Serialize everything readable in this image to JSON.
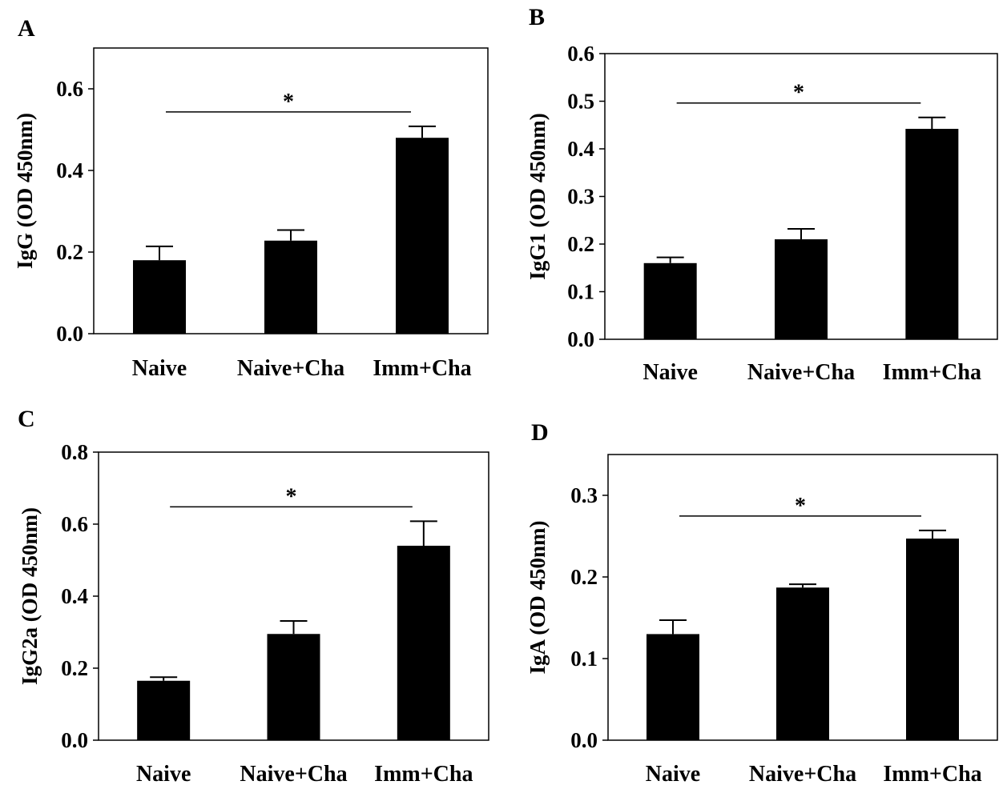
{
  "chart_data": [
    {
      "panel_label": "A",
      "type": "bar",
      "categories": [
        "Naive",
        "Naive+Cha",
        "Imm+Cha"
      ],
      "values": [
        0.18,
        0.228,
        0.48
      ],
      "errors": [
        0.034,
        0.026,
        0.028
      ],
      "ylabel": "IgG (OD 450nm)",
      "ylim": [
        0,
        0.7
      ],
      "yticks": [
        0.0,
        0.2,
        0.4,
        0.6
      ],
      "ytick_labels": [
        "0.0",
        "0.2",
        "0.4",
        "0.6"
      ],
      "significance": {
        "from": "Naive",
        "to": "Imm+Cha",
        "label": "*"
      },
      "bar_color": "#000000"
    },
    {
      "panel_label": "B",
      "type": "bar",
      "categories": [
        "Naive",
        "Naive+Cha",
        "Imm+Cha"
      ],
      "values": [
        0.16,
        0.21,
        0.442
      ],
      "errors": [
        0.012,
        0.022,
        0.024
      ],
      "ylabel": "IgG1 (OD 450nm)",
      "ylim": [
        0,
        0.6
      ],
      "yticks": [
        0.0,
        0.1,
        0.2,
        0.3,
        0.4,
        0.5,
        0.6
      ],
      "ytick_labels": [
        "0.0",
        "0.1",
        "0.2",
        "0.3",
        "0.4",
        "0.5",
        "0.6"
      ],
      "significance": {
        "from": "Naive",
        "to": "Imm+Cha",
        "label": "*"
      },
      "bar_color": "#000000"
    },
    {
      "panel_label": "C",
      "type": "bar",
      "categories": [
        "Naive",
        "Naive+Cha",
        "Imm+Cha"
      ],
      "values": [
        0.165,
        0.295,
        0.54
      ],
      "errors": [
        0.01,
        0.036,
        0.068
      ],
      "ylabel": "IgG2a (OD 450nm)",
      "ylim": [
        0,
        0.8
      ],
      "yticks": [
        0.0,
        0.2,
        0.4,
        0.6,
        0.8
      ],
      "ytick_labels": [
        "0.0",
        "0.2",
        "0.4",
        "0.6",
        "0.8"
      ],
      "significance": {
        "from": "Naive",
        "to": "Imm+Cha",
        "label": "*"
      },
      "bar_color": "#000000"
    },
    {
      "panel_label": "D",
      "type": "bar",
      "categories": [
        "Naive",
        "Naive+Cha",
        "Imm+Cha"
      ],
      "values": [
        0.13,
        0.187,
        0.247
      ],
      "errors": [
        0.017,
        0.004,
        0.01
      ],
      "ylabel": "IgA (OD 450nm)",
      "ylim": [
        0,
        0.35
      ],
      "yticks": [
        0.0,
        0.1,
        0.2,
        0.3
      ],
      "ytick_labels": [
        "0.0",
        "0.1",
        "0.2",
        "0.3"
      ],
      "significance": {
        "from": "Naive",
        "to": "Imm+Cha",
        "label": "*"
      },
      "bar_color": "#000000"
    }
  ]
}
